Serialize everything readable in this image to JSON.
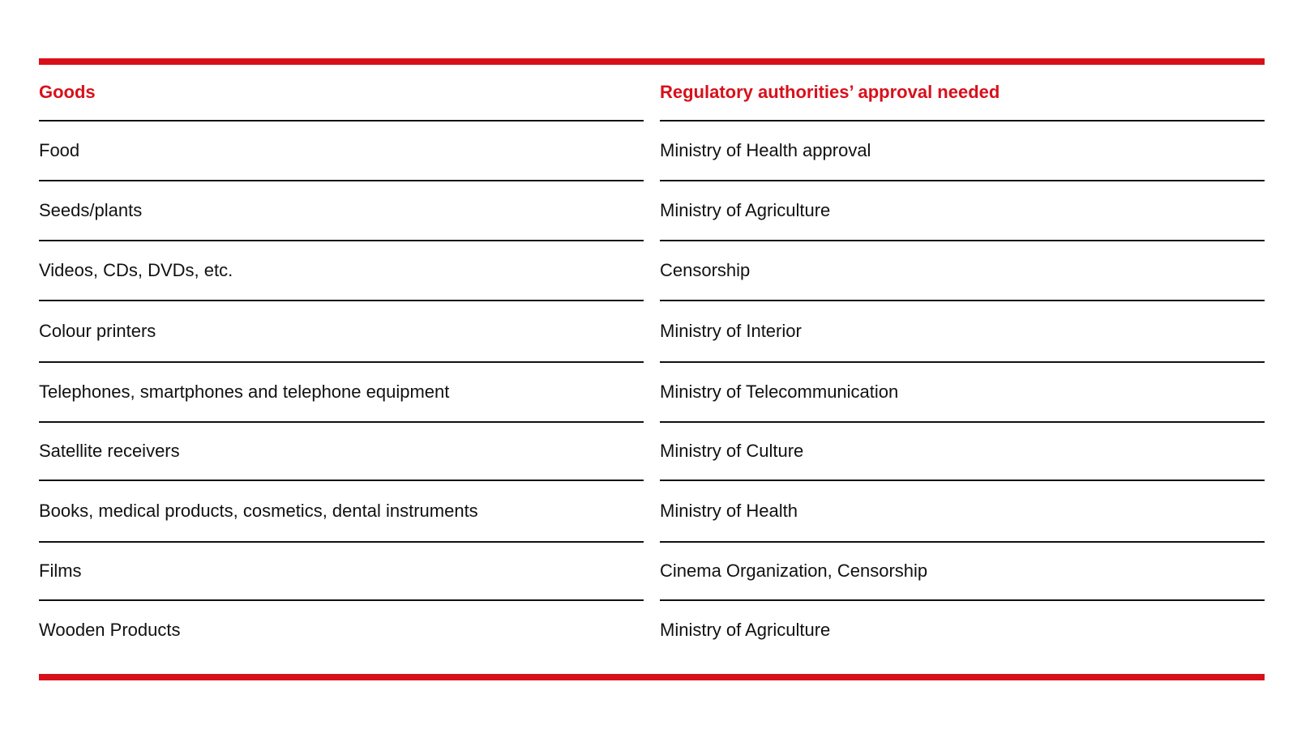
{
  "table": {
    "headers": {
      "goods": "Goods",
      "approval": "Regulatory authorities’ approval needed"
    },
    "rows": [
      {
        "goods": "Food",
        "approval": "Ministry of Health approval"
      },
      {
        "goods": "Seeds/plants",
        "approval": "Ministry of Agriculture"
      },
      {
        "goods": "Videos, CDs, DVDs, etc.",
        "approval": "Censorship"
      },
      {
        "goods": "Colour printers",
        "approval": "Ministry of Interior"
      },
      {
        "goods": "Telephones, smartphones and telephone equipment",
        "approval": "Ministry of Telecommunication"
      },
      {
        "goods": "Satellite receivers",
        "approval": "Ministry of Culture"
      },
      {
        "goods": "Books, medical products, cosmetics, dental instruments",
        "approval": "Ministry of Health"
      },
      {
        "goods": "Films",
        "approval": "Cinema Organization, Censorship"
      },
      {
        "goods": "Wooden Products",
        "approval": "Ministry of Agriculture"
      }
    ],
    "accent_color": "#d8101a"
  }
}
